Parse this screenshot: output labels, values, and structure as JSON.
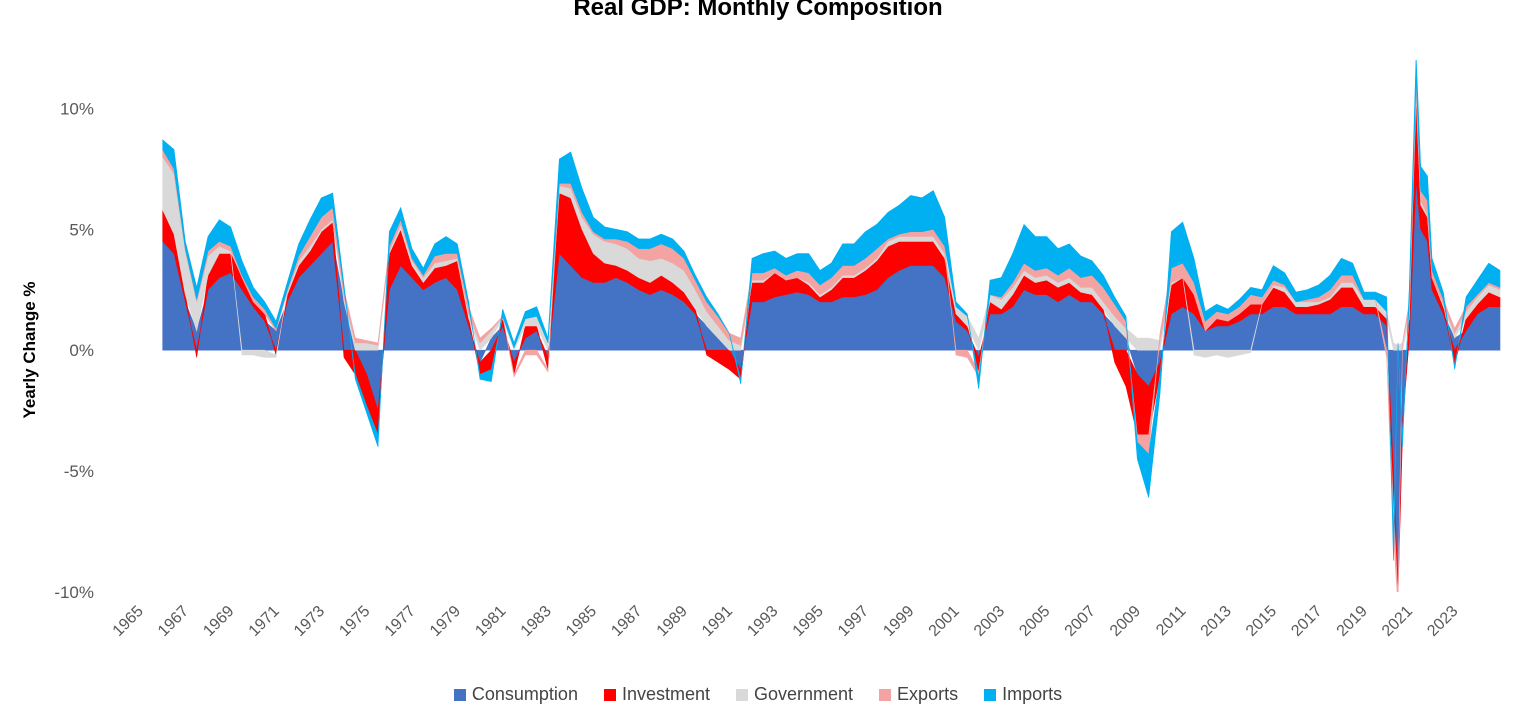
{
  "chart_data": {
    "type": "area",
    "title": "Real GDP: Monthly Composition",
    "ylabel": "Yearly Change %",
    "xlabel": "",
    "ylim": [
      -10,
      12
    ],
    "xlim": [
      1965,
      2025
    ],
    "y_ticks": [
      {
        "value": 10,
        "label": "10%"
      },
      {
        "value": 5,
        "label": "5%"
      },
      {
        "value": 0,
        "label": "0%"
      },
      {
        "value": -5,
        "label": "-5%"
      },
      {
        "value": -10,
        "label": "-10%"
      }
    ],
    "x_ticks": [
      "1965",
      "1967",
      "1969",
      "1971",
      "1973",
      "1975",
      "1977",
      "1979",
      "1981",
      "1983",
      "1985",
      "1987",
      "1989",
      "1991",
      "1993",
      "1995",
      "1997",
      "1999",
      "2001",
      "2003",
      "2005",
      "2007",
      "2009",
      "2011",
      "2013",
      "2015",
      "2017",
      "2019",
      "2021",
      "2023"
    ],
    "legend_position": "bottom",
    "grid": false,
    "x": [
      1966.0,
      1966.5,
      1967.0,
      1967.5,
      1968.0,
      1968.5,
      1969.0,
      1969.5,
      1970.0,
      1970.5,
      1971.0,
      1971.5,
      1972.0,
      1972.5,
      1973.0,
      1973.5,
      1974.0,
      1974.5,
      1975.0,
      1975.5,
      1976.0,
      1976.5,
      1977.0,
      1977.5,
      1978.0,
      1978.5,
      1979.0,
      1979.5,
      1980.0,
      1980.5,
      1981.0,
      1981.5,
      1982.0,
      1982.5,
      1983.0,
      1983.5,
      1984.0,
      1984.5,
      1985.0,
      1985.5,
      1986.0,
      1986.5,
      1987.0,
      1987.5,
      1988.0,
      1988.5,
      1989.0,
      1989.5,
      1990.0,
      1990.5,
      1991.0,
      1991.5,
      1992.0,
      1992.5,
      1993.0,
      1993.5,
      1994.0,
      1994.5,
      1995.0,
      1995.5,
      1996.0,
      1996.5,
      1997.0,
      1997.5,
      1998.0,
      1998.5,
      1999.0,
      1999.5,
      2000.0,
      2000.5,
      2001.0,
      2001.5,
      2002.0,
      2002.5,
      2003.0,
      2003.5,
      2004.0,
      2004.5,
      2005.0,
      2005.5,
      2006.0,
      2006.5,
      2007.0,
      2007.5,
      2008.0,
      2008.5,
      2009.0,
      2009.5,
      2010.0,
      2010.5,
      2011.0,
      2011.5,
      2012.0,
      2012.5,
      2013.0,
      2013.5,
      2014.0,
      2014.5,
      2015.0,
      2015.5,
      2016.0,
      2016.5,
      2017.0,
      2017.5,
      2018.0,
      2018.5,
      2019.0,
      2019.5,
      2020.0,
      2020.3,
      2020.5,
      2020.7,
      2021.0,
      2021.3,
      2021.5,
      2021.8,
      2022.0,
      2022.5,
      2023.0,
      2023.5,
      2024.0,
      2024.5,
      2025.0
    ],
    "series": [
      {
        "name": "Consumption",
        "color": "#4472c4",
        "values": [
          4.5,
          4.0,
          2.0,
          0.8,
          2.5,
          3.0,
          3.2,
          2.5,
          1.8,
          1.2,
          0.8,
          2.0,
          3.0,
          3.5,
          4.0,
          4.5,
          2.0,
          0.0,
          -1.0,
          -2.5,
          2.5,
          3.5,
          3.0,
          2.5,
          2.8,
          3.0,
          2.5,
          1.0,
          -0.5,
          0.5,
          1.0,
          -0.5,
          0.5,
          0.8,
          -0.3,
          4.0,
          3.5,
          3.0,
          2.8,
          2.8,
          3.0,
          2.8,
          2.5,
          2.3,
          2.5,
          2.3,
          2.0,
          1.5,
          1.0,
          0.5,
          0.0,
          -0.8,
          2.0,
          2.0,
          2.2,
          2.3,
          2.4,
          2.3,
          2.0,
          2.0,
          2.2,
          2.2,
          2.3,
          2.5,
          3.0,
          3.3,
          3.5,
          3.5,
          3.5,
          3.0,
          1.2,
          0.8,
          -0.3,
          1.5,
          1.5,
          1.8,
          2.5,
          2.3,
          2.3,
          2.0,
          2.3,
          2.0,
          2.0,
          1.5,
          1.0,
          0.5,
          -1.0,
          -1.5,
          -0.5,
          1.5,
          1.8,
          1.5,
          0.8,
          1.0,
          1.0,
          1.2,
          1.5,
          1.5,
          1.8,
          1.8,
          1.5,
          1.5,
          1.5,
          1.5,
          1.8,
          1.8,
          1.5,
          1.5,
          1.0,
          -5.0,
          -9.8,
          -3.0,
          0.5,
          7.0,
          5.0,
          4.5,
          2.5,
          1.5,
          0.5,
          0.8,
          1.5,
          1.8,
          1.8
        ]
      },
      {
        "name": "Investment",
        "color": "#ff0000",
        "values": [
          1.3,
          0.8,
          0.3,
          -0.3,
          0.6,
          1.0,
          0.8,
          0.5,
          0.2,
          0.3,
          -0.2,
          0.3,
          0.5,
          0.6,
          0.9,
          0.8,
          -0.3,
          -1.0,
          -1.3,
          -1.0,
          1.5,
          1.5,
          0.5,
          0.3,
          0.6,
          0.5,
          1.2,
          0.3,
          -0.5,
          -0.8,
          0.3,
          -0.5,
          0.5,
          0.2,
          -0.5,
          2.5,
          2.8,
          2.0,
          1.2,
          0.8,
          0.5,
          0.5,
          0.5,
          0.5,
          0.6,
          0.5,
          0.4,
          0.2,
          -0.2,
          -0.5,
          -0.8,
          -0.4,
          0.8,
          0.8,
          1.0,
          0.6,
          0.6,
          0.4,
          0.2,
          0.5,
          0.8,
          0.8,
          1.0,
          1.2,
          1.3,
          1.2,
          1.0,
          1.0,
          1.0,
          0.8,
          0.3,
          0.2,
          -0.6,
          0.5,
          0.2,
          0.5,
          0.6,
          0.5,
          0.6,
          0.6,
          0.5,
          0.4,
          0.3,
          0.2,
          -0.5,
          -1.5,
          -2.5,
          -2.0,
          -0.5,
          1.2,
          1.2,
          0.8,
          0.0,
          0.3,
          0.2,
          0.3,
          0.4,
          0.4,
          0.8,
          0.6,
          0.3,
          0.3,
          0.4,
          0.6,
          0.8,
          0.8,
          0.3,
          0.3,
          0.3,
          -1.5,
          -0.3,
          -0.5,
          0.8,
          3.5,
          1.0,
          1.0,
          0.5,
          0.3,
          -0.6,
          0.5,
          0.4,
          0.6,
          0.4
        ]
      },
      {
        "name": "Government",
        "color": "#d9d9d9",
        "values": [
          2.2,
          2.5,
          1.8,
          1.2,
          0.8,
          0.3,
          0.1,
          -0.2,
          -0.2,
          -0.3,
          -0.1,
          0.1,
          0.2,
          0.2,
          0.1,
          0.1,
          0.2,
          0.3,
          0.3,
          0.2,
          0.1,
          0.2,
          0.2,
          0.2,
          0.2,
          0.2,
          0.1,
          0.2,
          0.3,
          0.3,
          0.1,
          0.1,
          0.3,
          0.4,
          0.3,
          0.3,
          0.4,
          0.5,
          0.8,
          0.9,
          0.9,
          0.9,
          0.8,
          0.9,
          0.7,
          0.8,
          0.9,
          0.8,
          0.6,
          0.5,
          0.4,
          0.2,
          0.1,
          0.1,
          0.0,
          0.0,
          0.0,
          0.1,
          0.1,
          0.1,
          0.1,
          0.1,
          0.1,
          0.1,
          0.2,
          0.2,
          0.2,
          0.2,
          0.2,
          0.2,
          0.3,
          0.4,
          0.5,
          0.3,
          0.4,
          0.3,
          0.2,
          0.2,
          0.2,
          0.2,
          0.2,
          0.2,
          0.3,
          0.3,
          0.4,
          0.4,
          0.5,
          0.5,
          0.4,
          0.1,
          0.0,
          -0.2,
          -0.3,
          -0.2,
          -0.3,
          -0.2,
          -0.1,
          0.0,
          0.1,
          0.2,
          0.2,
          0.2,
          0.1,
          0.1,
          0.2,
          0.2,
          0.3,
          0.3,
          0.3,
          0.3,
          0.2,
          0.3,
          0.4,
          0.2,
          0.2,
          0.1,
          0.0,
          0.1,
          0.2,
          0.3,
          0.3,
          0.3,
          0.3
        ]
      },
      {
        "name": "Exports",
        "color": "#f4a3a3",
        "values": [
          0.3,
          0.2,
          0.1,
          0.1,
          0.2,
          0.2,
          0.2,
          0.1,
          0.2,
          0.2,
          0.1,
          0.1,
          0.2,
          0.4,
          0.5,
          0.5,
          0.3,
          0.2,
          0.1,
          0.1,
          0.2,
          0.2,
          0.1,
          0.1,
          0.3,
          0.3,
          0.2,
          0.3,
          0.2,
          0.1,
          0.0,
          -0.1,
          -0.2,
          -0.2,
          -0.1,
          0.1,
          0.2,
          0.2,
          0.1,
          0.1,
          0.2,
          0.3,
          0.4,
          0.5,
          0.6,
          0.6,
          0.5,
          0.4,
          0.4,
          0.4,
          0.3,
          0.3,
          0.3,
          0.3,
          0.2,
          0.2,
          0.3,
          0.4,
          0.4,
          0.4,
          0.4,
          0.4,
          0.4,
          0.4,
          0.1,
          0.1,
          0.2,
          0.2,
          0.3,
          0.3,
          -0.2,
          -0.3,
          -0.2,
          0.0,
          0.1,
          0.2,
          0.3,
          0.3,
          0.3,
          0.3,
          0.4,
          0.4,
          0.5,
          0.6,
          0.5,
          0.3,
          -0.3,
          -0.8,
          0.3,
          0.6,
          0.6,
          0.5,
          0.4,
          0.3,
          0.3,
          0.3,
          0.4,
          0.3,
          0.2,
          0.1,
          0.0,
          0.1,
          0.2,
          0.3,
          0.3,
          0.3,
          0.0,
          0.0,
          -0.3,
          -1.2,
          -0.5,
          0.0,
          0.3,
          0.5,
          0.4,
          0.6,
          0.3,
          0.2,
          0.2,
          0.2,
          0.1,
          0.1,
          0.1
        ]
      },
      {
        "name": "Imports",
        "color": "#00b0f0",
        "values": [
          0.4,
          0.8,
          0.3,
          0.5,
          0.6,
          0.9,
          0.8,
          0.6,
          0.4,
          0.3,
          0.3,
          0.3,
          0.5,
          0.7,
          0.8,
          0.6,
          0.2,
          -0.2,
          -0.3,
          -0.5,
          0.6,
          0.5,
          0.4,
          0.3,
          0.5,
          0.7,
          0.4,
          0.2,
          -0.2,
          -0.5,
          0.3,
          0.2,
          0.3,
          0.4,
          0.2,
          1.0,
          1.3,
          1.0,
          0.6,
          0.5,
          0.4,
          0.4,
          0.4,
          0.4,
          0.4,
          0.4,
          0.3,
          0.2,
          0.2,
          0.1,
          0.0,
          -0.2,
          0.6,
          0.8,
          0.7,
          0.7,
          0.7,
          0.8,
          0.6,
          0.6,
          0.9,
          0.9,
          1.1,
          1.0,
          1.1,
          1.2,
          1.5,
          1.4,
          1.6,
          1.2,
          0.2,
          0.1,
          -0.5,
          0.6,
          0.8,
          1.2,
          1.6,
          1.4,
          1.3,
          1.1,
          1.0,
          0.9,
          0.6,
          0.5,
          0.3,
          0.2,
          -0.7,
          -1.8,
          -0.8,
          1.5,
          1.7,
          1.0,
          0.4,
          0.3,
          0.2,
          0.3,
          0.3,
          0.3,
          0.6,
          0.5,
          0.4,
          0.4,
          0.5,
          0.6,
          0.7,
          0.5,
          0.3,
          0.3,
          0.6,
          -1.0,
          0.1,
          -0.5,
          0.6,
          1.0,
          1.0,
          1.0,
          0.5,
          0.3,
          -0.2,
          0.4,
          0.6,
          0.8,
          0.7
        ]
      }
    ]
  }
}
